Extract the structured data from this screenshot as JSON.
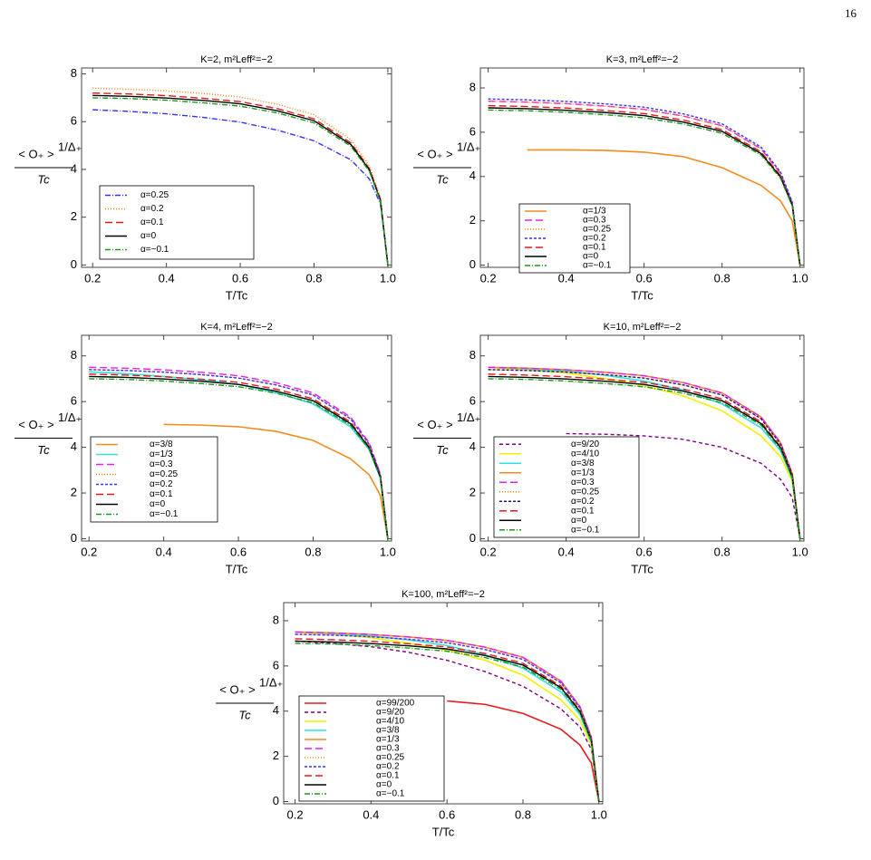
{
  "page_number": "16",
  "chart_data": [
    {
      "type": "line",
      "title": "K=2, m²Leff²=−2",
      "xlabel": "T/Tc",
      "ylabel": {
        "numerator": "< O₊ >",
        "exponent": "1/Δ₊",
        "denominator": "Tc"
      },
      "xlim": [
        0.17,
        1.01
      ],
      "ylim": [
        -0.1,
        8.25
      ],
      "xticks": [
        0.2,
        0.4,
        0.6,
        0.8,
        {
          "value": 1.0,
          "label": "1.0"
        }
      ],
      "yticks": [
        0,
        2,
        4,
        6,
        8
      ],
      "x": [
        0.2,
        0.3,
        0.4,
        0.5,
        0.6,
        0.7,
        0.8,
        0.9,
        0.95,
        0.98,
        1.0
      ],
      "series": [
        {
          "name": "α=0.25",
          "color": "#3333ff",
          "dash": "6,2,1,2",
          "values": [
            6.5,
            6.43,
            6.33,
            6.18,
            5.98,
            5.65,
            5.2,
            4.4,
            3.6,
            2.55,
            0
          ]
        },
        {
          "name": "α=0.2",
          "color": "#ff7f0e",
          "dash": "1,2",
          "values": [
            7.4,
            7.36,
            7.29,
            7.18,
            7.03,
            6.73,
            6.29,
            5.25,
            4.14,
            2.81,
            0
          ]
        },
        {
          "name": "α=0.1",
          "color": "#e31a1c",
          "dash": "8,4",
          "values": [
            7.2,
            7.16,
            7.09,
            6.98,
            6.84,
            6.55,
            6.12,
            5.11,
            4.03,
            2.74,
            0
          ]
        },
        {
          "name": "α=0",
          "color": "#000000",
          "dash": "none",
          "values": [
            7.1,
            7.06,
            6.99,
            6.89,
            6.75,
            6.46,
            6.04,
            5.04,
            3.98,
            2.7,
            0
          ]
        },
        {
          "name": "α=−0.1",
          "color": "#1a9a1a",
          "dash": "6,2,1,2",
          "values": [
            7.0,
            6.97,
            6.9,
            6.79,
            6.65,
            6.37,
            5.95,
            4.97,
            3.92,
            2.66,
            0
          ]
        }
      ]
    },
    {
      "type": "line",
      "title": "K=3, m²Leff²=−2",
      "xlabel": "T/Tc",
      "ylabel": {
        "numerator": "< O₊ >",
        "exponent": "1/Δ₊",
        "denominator": "Tc"
      },
      "xlim": [
        0.18,
        1.01
      ],
      "ylim": [
        -0.1,
        8.9
      ],
      "xticks": [
        0.2,
        0.4,
        0.6,
        0.8,
        {
          "value": 1.0,
          "label": "1.0"
        }
      ],
      "yticks": [
        0,
        2,
        4,
        6,
        8
      ],
      "x": [
        0.2,
        0.3,
        0.4,
        0.5,
        0.6,
        0.7,
        0.8,
        0.9,
        0.95,
        0.98,
        1.0
      ],
      "series": [
        {
          "name": "α=1/3",
          "color": "#f28c1e",
          "dash": "none",
          "values": [
            null,
            5.2,
            5.2,
            5.18,
            5.1,
            4.9,
            4.4,
            3.6,
            2.9,
            2.0,
            0
          ]
        },
        {
          "name": "α=0.3",
          "color": "#e81ee8",
          "dash": "8,4",
          "values": [
            7.4,
            7.36,
            7.29,
            7.18,
            7.03,
            6.73,
            6.29,
            5.25,
            4.14,
            2.81,
            0
          ]
        },
        {
          "name": "α=0.25",
          "color": "#ff7f0e",
          "dash": "1,2",
          "values": [
            7.4,
            7.36,
            7.29,
            7.18,
            7.03,
            6.73,
            6.29,
            5.25,
            4.14,
            2.81,
            0
          ]
        },
        {
          "name": "α=0.2",
          "color": "#3333ff",
          "dash": "3,2",
          "values": [
            7.5,
            7.46,
            7.39,
            7.28,
            7.13,
            6.83,
            6.38,
            5.33,
            4.2,
            2.85,
            0
          ]
        },
        {
          "name": "α=0.1",
          "color": "#e31a1c",
          "dash": "8,4",
          "values": [
            7.2,
            7.16,
            7.09,
            6.98,
            6.84,
            6.55,
            6.12,
            5.11,
            4.03,
            2.74,
            0
          ]
        },
        {
          "name": "α=0",
          "color": "#000000",
          "dash": "none",
          "values": [
            7.1,
            7.06,
            6.99,
            6.89,
            6.75,
            6.46,
            6.04,
            5.04,
            3.98,
            2.7,
            0
          ]
        },
        {
          "name": "α=−0.1",
          "color": "#1a9a1a",
          "dash": "6,2,1,2",
          "values": [
            7.0,
            6.97,
            6.9,
            6.79,
            6.65,
            6.37,
            5.95,
            4.97,
            3.92,
            2.66,
            0
          ]
        }
      ]
    },
    {
      "type": "line",
      "title": "K=4, m²Leff²=−2",
      "xlabel": "T/Tc",
      "ylabel": {
        "numerator": "< O₊ >",
        "exponent": "1/Δ₊",
        "denominator": "Tc"
      },
      "xlim": [
        0.18,
        1.01
      ],
      "ylim": [
        -0.1,
        8.9
      ],
      "xticks": [
        0.2,
        0.4,
        0.6,
        0.8,
        {
          "value": 1.0,
          "label": "1.0"
        }
      ],
      "yticks": [
        0,
        2,
        4,
        6,
        8
      ],
      "x": [
        0.2,
        0.3,
        0.4,
        0.5,
        0.6,
        0.7,
        0.8,
        0.9,
        0.95,
        0.98,
        1.0
      ],
      "series": [
        {
          "name": "α=3/8",
          "color": "#f28c1e",
          "dash": "none",
          "values": [
            null,
            null,
            5.0,
            4.97,
            4.9,
            4.7,
            4.3,
            3.5,
            2.8,
            1.9,
            0
          ]
        },
        {
          "name": "α=1/3",
          "color": "#33e0e0",
          "dash": "none",
          "values": [
            7.3,
            7.22,
            7.1,
            6.95,
            6.75,
            6.4,
            5.9,
            4.9,
            3.9,
            2.65,
            0
          ]
        },
        {
          "name": "α=0.3",
          "color": "#e81ee8",
          "dash": "8,4",
          "values": [
            7.5,
            7.46,
            7.39,
            7.28,
            7.13,
            6.83,
            6.38,
            5.33,
            4.2,
            2.85,
            0
          ]
        },
        {
          "name": "α=0.25",
          "color": "#ff7f0e",
          "dash": "1,2",
          "values": [
            7.4,
            7.36,
            7.29,
            7.18,
            7.03,
            6.73,
            6.29,
            5.25,
            4.14,
            2.81,
            0
          ]
        },
        {
          "name": "α=0.2",
          "color": "#3333ff",
          "dash": "3,2",
          "values": [
            7.4,
            7.36,
            7.29,
            7.18,
            7.03,
            6.73,
            6.29,
            5.25,
            4.14,
            2.81,
            0
          ]
        },
        {
          "name": "α=0.1",
          "color": "#e31a1c",
          "dash": "8,4",
          "values": [
            7.2,
            7.16,
            7.09,
            6.98,
            6.84,
            6.55,
            6.12,
            5.11,
            4.03,
            2.74,
            0
          ]
        },
        {
          "name": "α=0",
          "color": "#000000",
          "dash": "none",
          "values": [
            7.1,
            7.06,
            6.99,
            6.89,
            6.75,
            6.46,
            6.04,
            5.04,
            3.98,
            2.7,
            0
          ]
        },
        {
          "name": "α=−0.1",
          "color": "#1a9a1a",
          "dash": "6,2,1,2",
          "values": [
            7.0,
            6.97,
            6.9,
            6.79,
            6.65,
            6.37,
            5.95,
            4.97,
            3.92,
            2.66,
            0
          ]
        }
      ]
    },
    {
      "type": "line",
      "title": "K=10, m²Leff²=−2",
      "xlabel": "T/Tc",
      "ylabel": {
        "numerator": "< O₊ >",
        "exponent": "1/Δ₊",
        "denominator": "Tc"
      },
      "xlim": [
        0.18,
        1.01
      ],
      "ylim": [
        -0.1,
        8.9
      ],
      "xticks": [
        0.2,
        0.4,
        0.6,
        0.8,
        {
          "value": 1.0,
          "label": "1.0"
        }
      ],
      "yticks": [
        0,
        2,
        4,
        6,
        8
      ],
      "x": [
        0.2,
        0.3,
        0.4,
        0.5,
        0.6,
        0.7,
        0.8,
        0.9,
        0.95,
        0.98,
        1.0
      ],
      "series": [
        {
          "name": "α=9/20",
          "color": "#800080",
          "dash": "4,3",
          "values": [
            null,
            null,
            4.6,
            4.57,
            4.5,
            4.35,
            4.0,
            3.3,
            2.6,
            1.8,
            0
          ]
        },
        {
          "name": "α=4/10",
          "color": "#f0f000",
          "dash": "none",
          "values": [
            7.5,
            7.4,
            7.25,
            7.0,
            6.7,
            6.25,
            5.6,
            4.5,
            3.6,
            2.5,
            0
          ]
        },
        {
          "name": "α=3/8",
          "color": "#33e0e0",
          "dash": "none",
          "values": [
            7.5,
            7.43,
            7.33,
            7.15,
            6.9,
            6.5,
            5.9,
            4.85,
            3.85,
            2.62,
            0
          ]
        },
        {
          "name": "α=1/3",
          "color": "#f28c1e",
          "dash": "none",
          "values": [
            7.5,
            7.46,
            7.39,
            7.28,
            7.13,
            6.83,
            6.38,
            5.33,
            4.2,
            2.85,
            0
          ]
        },
        {
          "name": "α=0.3",
          "color": "#e81ee8",
          "dash": "8,4",
          "values": [
            7.5,
            7.46,
            7.39,
            7.28,
            7.13,
            6.83,
            6.38,
            5.33,
            4.2,
            2.85,
            0
          ]
        },
        {
          "name": "α=0.25",
          "color": "#ff7f0e",
          "dash": "1,2",
          "values": [
            7.4,
            7.36,
            7.29,
            7.18,
            7.03,
            6.73,
            6.29,
            5.25,
            4.14,
            2.81,
            0
          ]
        },
        {
          "name": "α=0.2",
          "color": "#1a1a80",
          "dash": "3,2",
          "values": [
            7.4,
            7.36,
            7.29,
            7.18,
            7.03,
            6.73,
            6.29,
            5.25,
            4.14,
            2.81,
            0
          ]
        },
        {
          "name": "α=0.1",
          "color": "#e31a1c",
          "dash": "8,4",
          "values": [
            7.2,
            7.16,
            7.09,
            6.98,
            6.84,
            6.55,
            6.12,
            5.11,
            4.03,
            2.74,
            0
          ]
        },
        {
          "name": "α=0",
          "color": "#000000",
          "dash": "none",
          "values": [
            7.1,
            7.06,
            6.99,
            6.89,
            6.75,
            6.46,
            6.04,
            5.04,
            3.98,
            2.7,
            0
          ]
        },
        {
          "name": "α=−0.1",
          "color": "#1a9a1a",
          "dash": "6,2,1,2",
          "values": [
            7.0,
            6.97,
            6.9,
            6.79,
            6.65,
            6.37,
            5.95,
            4.97,
            3.92,
            2.66,
            0
          ]
        }
      ]
    },
    {
      "type": "line",
      "title": "K=100, m²Leff²=−2",
      "xlabel": "T/Tc",
      "ylabel": {
        "numerator": "< O₊ >",
        "exponent": "1/Δ₊",
        "denominator": "Tc"
      },
      "xlim": [
        0.17,
        1.01
      ],
      "ylim": [
        -0.1,
        8.8
      ],
      "xticks": [
        0.2,
        0.4,
        0.6,
        0.8,
        {
          "value": 1.0,
          "label": "1.0"
        }
      ],
      "yticks": [
        0,
        2,
        4,
        6,
        8
      ],
      "x": [
        0.2,
        0.3,
        0.4,
        0.5,
        0.6,
        0.7,
        0.8,
        0.9,
        0.95,
        0.98,
        1.0
      ],
      "series": [
        {
          "name": "α=99/200",
          "color": "#e31a1c",
          "dash": "none",
          "values": [
            null,
            null,
            null,
            null,
            4.45,
            4.3,
            3.9,
            3.2,
            2.5,
            1.7,
            0
          ]
        },
        {
          "name": "α=9/20",
          "color": "#800080",
          "dash": "4,3",
          "values": [
            7.1,
            7.0,
            6.85,
            6.6,
            6.25,
            5.75,
            5.1,
            4.1,
            3.3,
            2.3,
            0
          ]
        },
        {
          "name": "α=4/10",
          "color": "#f0f000",
          "dash": "none",
          "values": [
            7.5,
            7.4,
            7.25,
            7.0,
            6.7,
            6.25,
            5.6,
            4.5,
            3.6,
            2.5,
            0
          ]
        },
        {
          "name": "α=3/8",
          "color": "#33e0e0",
          "dash": "none",
          "values": [
            7.5,
            7.43,
            7.33,
            7.15,
            6.9,
            6.5,
            5.9,
            4.85,
            3.85,
            2.62,
            0
          ]
        },
        {
          "name": "α=1/3",
          "color": "#f28c1e",
          "dash": "none",
          "values": [
            7.5,
            7.46,
            7.39,
            7.28,
            7.13,
            6.83,
            6.38,
            5.33,
            4.2,
            2.85,
            0
          ]
        },
        {
          "name": "α=0.3",
          "color": "#e81ee8",
          "dash": "8,4",
          "values": [
            7.5,
            7.46,
            7.39,
            7.28,
            7.13,
            6.83,
            6.38,
            5.33,
            4.2,
            2.85,
            0
          ]
        },
        {
          "name": "α=0.25",
          "color": "#ff7f0e",
          "dash": "1,2",
          "values": [
            7.4,
            7.36,
            7.29,
            7.18,
            7.03,
            6.73,
            6.29,
            5.25,
            4.14,
            2.81,
            0
          ]
        },
        {
          "name": "α=0.2",
          "color": "#3333ff",
          "dash": "3,2",
          "values": [
            7.4,
            7.36,
            7.29,
            7.18,
            7.03,
            6.73,
            6.29,
            5.25,
            4.14,
            2.81,
            0
          ]
        },
        {
          "name": "α=0.1",
          "color": "#e31a1c",
          "dash": "8,4",
          "values": [
            7.2,
            7.16,
            7.09,
            6.98,
            6.84,
            6.55,
            6.12,
            5.11,
            4.03,
            2.74,
            0
          ]
        },
        {
          "name": "α=0",
          "color": "#000000",
          "dash": "none",
          "values": [
            7.1,
            7.06,
            6.99,
            6.89,
            6.75,
            6.46,
            6.04,
            5.04,
            3.98,
            2.7,
            0
          ]
        },
        {
          "name": "α=−0.1",
          "color": "#1a9a1a",
          "dash": "6,2,1,2",
          "values": [
            7.0,
            6.97,
            6.9,
            6.79,
            6.65,
            6.37,
            5.95,
            4.97,
            3.92,
            2.66,
            0
          ]
        }
      ]
    }
  ]
}
